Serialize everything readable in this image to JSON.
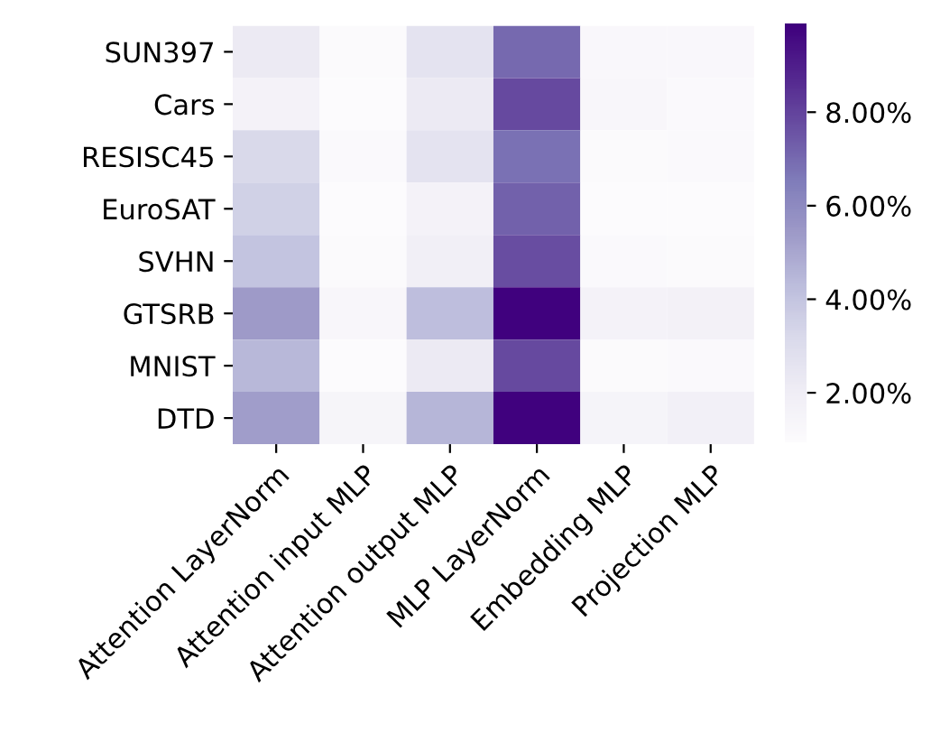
{
  "chart_data": {
    "type": "heatmap",
    "categories": [
      "Attention LayerNorm",
      "Attention input MLP",
      "Attention output MLP",
      "MLP LayerNorm",
      "Embedding MLP",
      "Projection MLP"
    ],
    "y_categories": [
      "SUN397",
      "Cars",
      "RESISC45",
      "EuroSAT",
      "SVHN",
      "GTSRB",
      "MNIST",
      "DTD"
    ],
    "cells": [
      [
        2.2,
        1.0,
        2.6,
        7.0,
        1.2,
        1.2
      ],
      [
        1.6,
        0.9,
        2.2,
        7.8,
        1.3,
        1.1
      ],
      [
        3.2,
        1.1,
        2.6,
        6.8,
        1.0,
        1.1
      ],
      [
        3.5,
        0.9,
        1.6,
        7.2,
        0.9,
        0.9
      ],
      [
        4.0,
        1.0,
        1.9,
        7.7,
        1.1,
        1.0
      ],
      [
        5.4,
        1.3,
        4.2,
        9.8,
        1.6,
        1.7
      ],
      [
        4.4,
        0.9,
        2.2,
        7.8,
        1.0,
        1.1
      ],
      [
        5.3,
        1.4,
        4.5,
        9.8,
        1.5,
        1.8
      ]
    ],
    "clim": [
      0.9,
      9.85
    ],
    "cticks": [
      {
        "value": 2,
        "label": "2.00%"
      },
      {
        "value": 4,
        "label": "4.00%"
      },
      {
        "value": 6,
        "label": "6.00%"
      },
      {
        "value": 8,
        "label": "8.00%"
      }
    ]
  }
}
